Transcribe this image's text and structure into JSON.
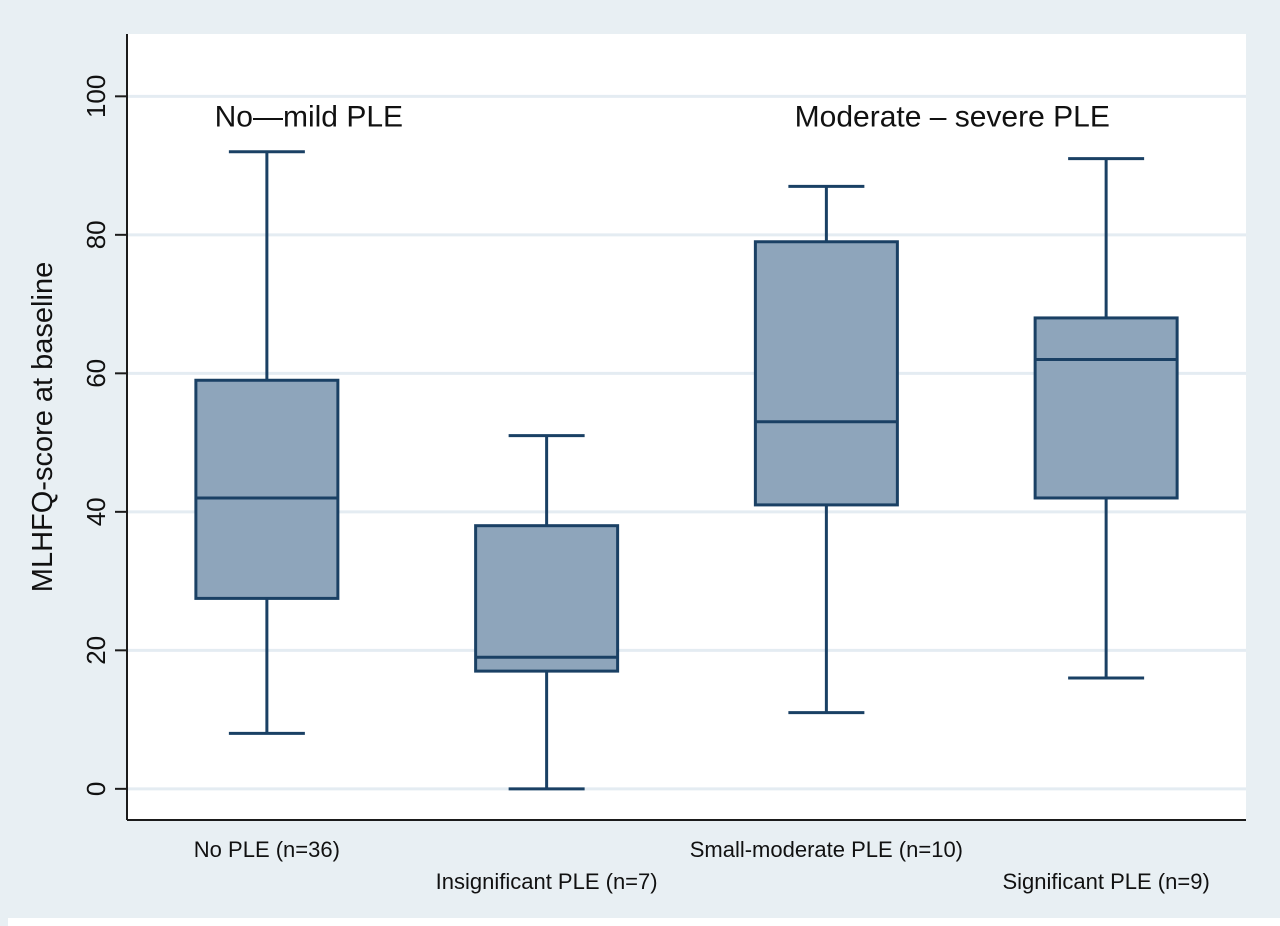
{
  "chart_data": {
    "type": "box",
    "title": "",
    "xlabel": "",
    "ylabel": "MLHFQ-score at baseline",
    "ylim": [
      -4.5,
      109
    ],
    "yticks": [
      0,
      20,
      40,
      60,
      80,
      100
    ],
    "grid": true,
    "colors": {
      "outer_background": "#e8eff3",
      "plot_background": "#ffffff",
      "box_fill": "#8ea5bb",
      "box_stroke": "#1a4064",
      "grid": "#e4ecf2",
      "text": "#111111"
    },
    "annotations": [
      {
        "text": "No—mild PLE",
        "x": 0.65,
        "y": 97
      },
      {
        "text": "Moderate – severe PLE",
        "x": 2.95,
        "y": 97
      }
    ],
    "categories": [
      "No PLE (n=36)",
      "Insignificant PLE (n=7)",
      "Small-moderate PLE (n=10)",
      "Significant PLE (n=9)"
    ],
    "boxes": [
      {
        "label": "No PLE (n=36)",
        "min": 8,
        "q1": 27.5,
        "median": 42,
        "q3": 59,
        "max": 92
      },
      {
        "label": "Insignificant PLE (n=7)",
        "min": 0,
        "q1": 17,
        "median": 19,
        "q3": 38,
        "max": 51
      },
      {
        "label": "Small-moderate PLE (n=10)",
        "min": 11,
        "q1": 41,
        "median": 53,
        "q3": 79,
        "max": 87
      },
      {
        "label": "Significant PLE (n=9)",
        "min": 16,
        "q1": 42,
        "median": 62,
        "q3": 68,
        "max": 91
      }
    ]
  }
}
